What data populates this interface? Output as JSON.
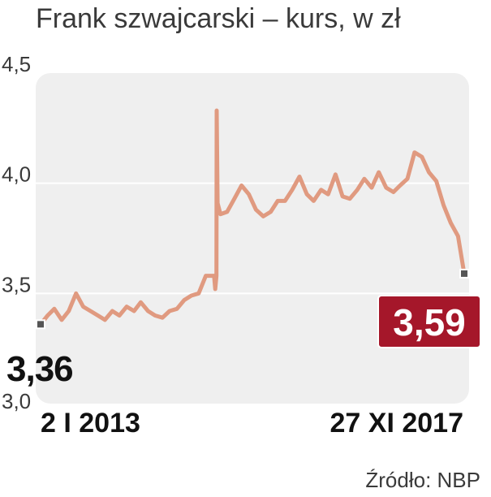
{
  "chart_data": {
    "type": "line",
    "title": "Frank szwajcarski – kurs, w zł",
    "source": "Źródło: NBP",
    "ylim": [
      3.0,
      4.5
    ],
    "yticks": [
      "3,0",
      "3,5",
      "4,0",
      "4,5"
    ],
    "ytick_values": [
      3.0,
      3.5,
      4.0,
      4.5
    ],
    "x_range": [
      "2013-01-02",
      "2017-11-27"
    ],
    "x_labels": [
      "2 I 2013",
      "27 XI 2017"
    ],
    "grid": true,
    "start_label": "3,36",
    "end_label": "3,59",
    "colors": {
      "line": "#e09a80",
      "plot_bg": "#efefef",
      "grid": "#ffffff",
      "end_badge": "#a5172a",
      "marker": "#555555"
    },
    "series": [
      {
        "x": [
          "2013-01-02",
          "2013-02-01",
          "2013-03-01",
          "2013-04-01",
          "2013-05-01",
          "2013-06-01",
          "2013-07-01",
          "2013-08-01",
          "2013-09-01",
          "2013-10-01",
          "2013-11-01",
          "2013-12-01",
          "2014-01-01",
          "2014-02-01",
          "2014-03-01",
          "2014-04-01",
          "2014-05-01",
          "2014-06-01",
          "2014-07-01",
          "2014-08-01",
          "2014-09-01",
          "2014-10-01",
          "2014-11-01",
          "2014-12-01",
          "2015-01-05",
          "2015-01-10",
          "2015-01-15",
          "2015-01-16",
          "2015-01-20",
          "2015-02-01",
          "2015-03-01",
          "2015-04-01",
          "2015-05-01",
          "2015-06-01",
          "2015-07-01",
          "2015-08-01",
          "2015-09-01",
          "2015-10-01",
          "2015-11-01",
          "2015-12-01",
          "2016-01-01",
          "2016-02-01",
          "2016-03-01",
          "2016-04-01",
          "2016-05-01",
          "2016-06-01",
          "2016-07-01",
          "2016-08-01",
          "2016-09-01",
          "2016-10-01",
          "2016-11-01",
          "2016-12-01",
          "2017-01-01",
          "2017-02-01",
          "2017-03-01",
          "2017-04-01",
          "2017-05-01",
          "2017-06-01",
          "2017-07-01",
          "2017-08-01",
          "2017-09-01",
          "2017-10-01",
          "2017-11-01",
          "2017-11-27"
        ],
        "values": [
          3.36,
          3.4,
          3.43,
          3.38,
          3.42,
          3.5,
          3.44,
          3.42,
          3.4,
          3.38,
          3.42,
          3.4,
          3.44,
          3.42,
          3.46,
          3.42,
          3.4,
          3.39,
          3.42,
          3.43,
          3.47,
          3.49,
          3.5,
          3.58,
          3.58,
          3.52,
          3.58,
          4.33,
          3.91,
          3.86,
          3.87,
          3.93,
          3.99,
          3.95,
          3.88,
          3.85,
          3.87,
          3.92,
          3.92,
          3.97,
          4.03,
          3.95,
          3.92,
          3.97,
          3.95,
          4.04,
          3.94,
          3.93,
          3.97,
          4.02,
          3.98,
          4.05,
          3.98,
          3.96,
          3.99,
          4.02,
          4.14,
          4.12,
          4.05,
          4.01,
          3.9,
          3.82,
          3.76,
          3.59
        ]
      }
    ]
  }
}
